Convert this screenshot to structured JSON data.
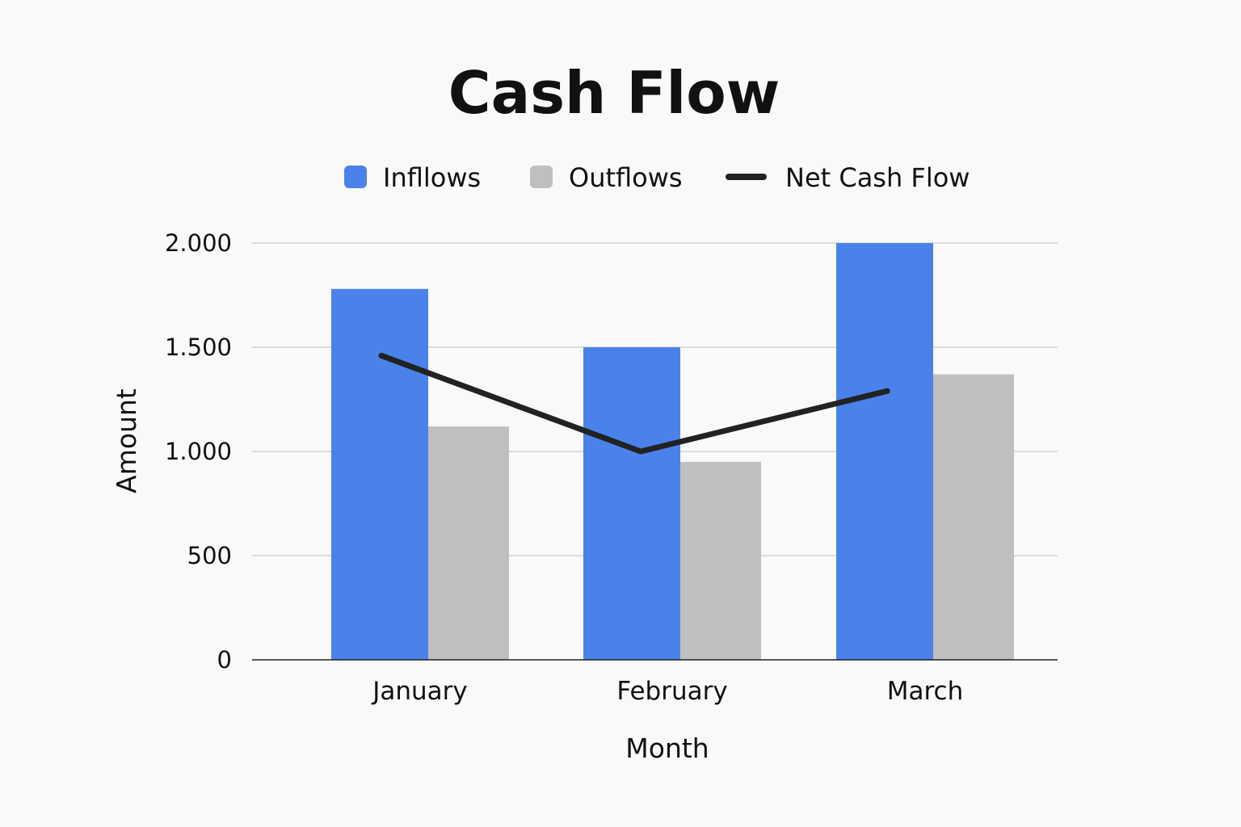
{
  "chart_data": {
    "type": "bar",
    "title": "Cash Flow",
    "xlabel": "Month",
    "ylabel": "Amount",
    "categories": [
      "January",
      "February",
      "March"
    ],
    "series": [
      {
        "name": "Infllows",
        "type": "bar",
        "color": "#4a82ea",
        "values": [
          1780,
          1500,
          2000
        ]
      },
      {
        "name": "Outflows",
        "type": "bar",
        "color": "#bfbfbf",
        "values": [
          1120,
          950,
          1370
        ]
      },
      {
        "name": "Net Cash Flow",
        "type": "line",
        "color": "#222222",
        "values": [
          1460,
          1000,
          1290
        ]
      }
    ],
    "ylim": [
      0,
      2000
    ],
    "yticks": [
      0,
      500,
      1000,
      1500,
      2000
    ],
    "ytick_labels": [
      "0",
      "500",
      "1.000",
      "1.500",
      "2.000"
    ],
    "grid": true,
    "legend_position": "top-center"
  }
}
